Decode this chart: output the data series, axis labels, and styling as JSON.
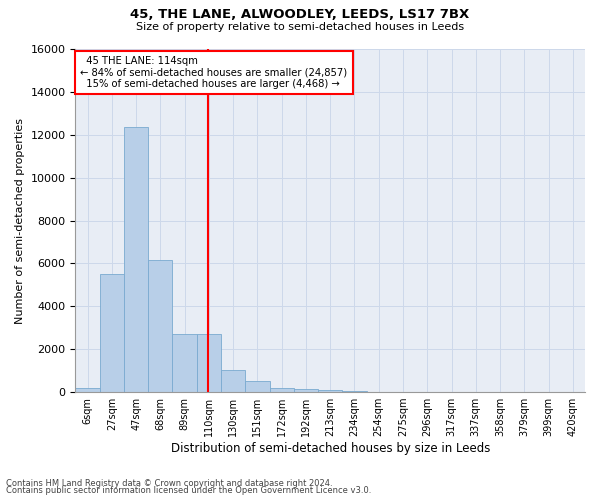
{
  "title1": "45, THE LANE, ALWOODLEY, LEEDS, LS17 7BX",
  "title2": "Size of property relative to semi-detached houses in Leeds",
  "xlabel": "Distribution of semi-detached houses by size in Leeds",
  "ylabel": "Number of semi-detached properties",
  "bar_color": "#b8cfe8",
  "bar_edge_color": "#7aaad0",
  "categories": [
    "6sqm",
    "27sqm",
    "47sqm",
    "68sqm",
    "89sqm",
    "110sqm",
    "130sqm",
    "151sqm",
    "172sqm",
    "192sqm",
    "213sqm",
    "234sqm",
    "254sqm",
    "275sqm",
    "296sqm",
    "317sqm",
    "337sqm",
    "358sqm",
    "379sqm",
    "399sqm",
    "420sqm"
  ],
  "values": [
    200,
    5500,
    12350,
    6150,
    2700,
    2700,
    1050,
    500,
    200,
    130,
    100,
    50,
    0,
    0,
    0,
    0,
    0,
    0,
    0,
    0,
    0
  ],
  "ylim": [
    0,
    16000
  ],
  "yticks": [
    0,
    2000,
    4000,
    6000,
    8000,
    10000,
    12000,
    14000,
    16000
  ],
  "property_label": "45 THE LANE: 114sqm",
  "pct_smaller": 84,
  "count_smaller": "24,857",
  "pct_larger": 15,
  "count_larger": "4,468",
  "vline_x_idx": 4.97,
  "footer1": "Contains HM Land Registry data © Crown copyright and database right 2024.",
  "footer2": "Contains public sector information licensed under the Open Government Licence v3.0.",
  "grid_color": "#cdd8ea",
  "bg_color": "#e8edf5"
}
